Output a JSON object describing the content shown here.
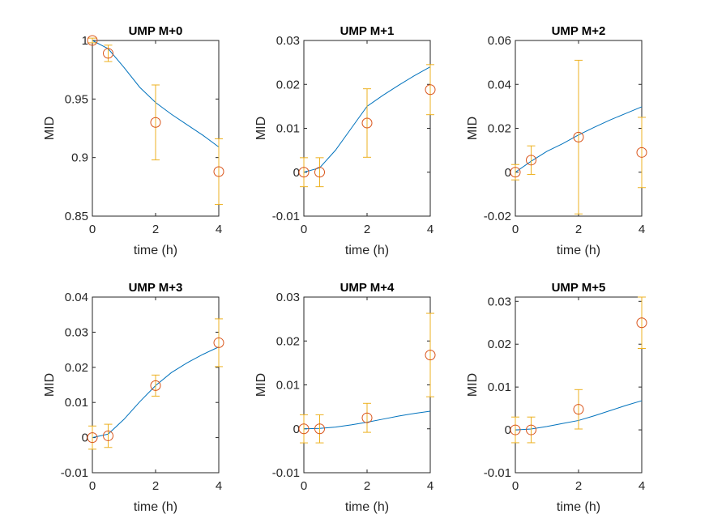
{
  "colors": {
    "model": "#0072BD",
    "data": "#D95319",
    "errorbar": "#EDB120",
    "axis": "#262626",
    "background": "#FFFFFF"
  },
  "chart_data": [
    {
      "type": "line",
      "title": "UMP M+0",
      "xlabel": "time (h)",
      "ylabel": "MID",
      "xlim": [
        0,
        4
      ],
      "ylim": [
        0.85,
        1.0
      ],
      "xticks": [
        0,
        2,
        4
      ],
      "xtick_labels": [
        "0",
        "2",
        "4"
      ],
      "yticks": [
        0.85,
        0.9,
        0.95,
        1.0
      ],
      "ytick_labels": [
        "0.85",
        "0.9",
        "0.95",
        "1"
      ],
      "grid": false,
      "series": [
        {
          "type": "line",
          "x": [
            0,
            0.5,
            1,
            1.5,
            2,
            2.5,
            3,
            3.5,
            4
          ],
          "y": [
            1.0,
            0.993,
            0.977,
            0.96,
            0.947,
            0.937,
            0.928,
            0.919,
            0.909
          ]
        },
        {
          "type": "scatter-errorbar",
          "x": [
            0,
            0.5,
            2,
            4
          ],
          "y": [
            1.0,
            0.989,
            0.93,
            0.888
          ],
          "error": [
            0.002,
            0.007,
            0.032,
            0.028
          ]
        }
      ]
    },
    {
      "type": "line",
      "title": "UMP M+1",
      "xlabel": "time (h)",
      "ylabel": "MID",
      "xlim": [
        0,
        4
      ],
      "ylim": [
        -0.01,
        0.03
      ],
      "xticks": [
        0,
        2,
        4
      ],
      "xtick_labels": [
        "0",
        "2",
        "4"
      ],
      "yticks": [
        -0.01,
        0,
        0.01,
        0.02,
        0.03
      ],
      "ytick_labels": [
        "-0.01",
        "0",
        "0.01",
        "0.02",
        "0.03"
      ],
      "grid": false,
      "series": [
        {
          "type": "line",
          "x": [
            0,
            0.5,
            1,
            1.5,
            2,
            2.5,
            3,
            3.5,
            4
          ],
          "y": [
            0,
            0.001,
            0.005,
            0.01,
            0.015,
            0.0175,
            0.0198,
            0.022,
            0.024
          ]
        },
        {
          "type": "scatter-errorbar",
          "x": [
            0,
            0.5,
            2,
            4
          ],
          "y": [
            0,
            0,
            0.0112,
            0.0188
          ],
          "error": [
            0.0033,
            0.0033,
            0.0078,
            0.0057
          ]
        }
      ]
    },
    {
      "type": "line",
      "title": "UMP M+2",
      "xlabel": "time (h)",
      "ylabel": "MID",
      "xlim": [
        0,
        4
      ],
      "ylim": [
        -0.02,
        0.06
      ],
      "xticks": [
        0,
        2,
        4
      ],
      "xtick_labels": [
        "0",
        "2",
        "4"
      ],
      "yticks": [
        -0.02,
        0,
        0.02,
        0.04,
        0.06
      ],
      "ytick_labels": [
        "-0.02",
        "0",
        "0.02",
        "0.04",
        "0.06"
      ],
      "grid": false,
      "series": [
        {
          "type": "line",
          "x": [
            0,
            0.5,
            1,
            1.5,
            2,
            2.5,
            3,
            3.5,
            4
          ],
          "y": [
            0,
            0.005,
            0.0095,
            0.013,
            0.017,
            0.0205,
            0.0238,
            0.0268,
            0.0298
          ]
        },
        {
          "type": "scatter-errorbar",
          "x": [
            0,
            0.5,
            2,
            4
          ],
          "y": [
            0,
            0.0055,
            0.016,
            0.009
          ],
          "error": [
            0.0035,
            0.0065,
            0.035,
            0.016
          ]
        }
      ]
    },
    {
      "type": "line",
      "title": "UMP M+3",
      "xlabel": "time (h)",
      "ylabel": "MID",
      "xlim": [
        0,
        4
      ],
      "ylim": [
        -0.01,
        0.04
      ],
      "xticks": [
        0,
        2,
        4
      ],
      "xtick_labels": [
        "0",
        "2",
        "4"
      ],
      "yticks": [
        -0.01,
        0,
        0.01,
        0.02,
        0.03,
        0.04
      ],
      "ytick_labels": [
        "-0.01",
        "0",
        "0.01",
        "0.02",
        "0.03",
        "0.04"
      ],
      "grid": false,
      "series": [
        {
          "type": "line",
          "x": [
            0,
            0.5,
            1,
            1.5,
            2,
            2.5,
            3,
            3.5,
            4
          ],
          "y": [
            0,
            0.001,
            0.0052,
            0.0102,
            0.0148,
            0.0185,
            0.0213,
            0.0237,
            0.0258
          ]
        },
        {
          "type": "scatter-errorbar",
          "x": [
            0,
            0.5,
            2,
            4
          ],
          "y": [
            0,
            0.0005,
            0.0148,
            0.027
          ],
          "error": [
            0.0033,
            0.0033,
            0.003,
            0.0068
          ]
        }
      ]
    },
    {
      "type": "line",
      "title": "UMP M+4",
      "xlabel": "time (h)",
      "ylabel": "MID",
      "xlim": [
        0,
        4
      ],
      "ylim": [
        -0.01,
        0.03
      ],
      "xticks": [
        0,
        2,
        4
      ],
      "xtick_labels": [
        "0",
        "2",
        "4"
      ],
      "yticks": [
        -0.01,
        0,
        0.01,
        0.02,
        0.03
      ],
      "ytick_labels": [
        "-0.01",
        "0",
        "0.01",
        "0.02",
        "0.03"
      ],
      "grid": false,
      "series": [
        {
          "type": "line",
          "x": [
            0,
            0.5,
            1,
            1.5,
            2,
            2.5,
            3,
            3.5,
            4
          ],
          "y": [
            0,
            0.0001,
            0.0004,
            0.0009,
            0.0015,
            0.0022,
            0.0029,
            0.0035,
            0.004
          ]
        },
        {
          "type": "scatter-errorbar",
          "x": [
            0,
            0.5,
            2,
            4
          ],
          "y": [
            0,
            0,
            0.0025,
            0.0168
          ],
          "error": [
            0.0032,
            0.0032,
            0.0033,
            0.0095
          ]
        }
      ]
    },
    {
      "type": "line",
      "title": "UMP M+5",
      "xlabel": "time (h)",
      "ylabel": "MID",
      "xlim": [
        0,
        4
      ],
      "ylim": [
        -0.01,
        0.031
      ],
      "xticks": [
        0,
        2,
        4
      ],
      "xtick_labels": [
        "0",
        "2",
        "4"
      ],
      "yticks": [
        -0.01,
        0,
        0.01,
        0.02,
        0.03
      ],
      "ytick_labels": [
        "-0.01",
        "0",
        "0.01",
        "0.02",
        "0.03"
      ],
      "grid": false,
      "series": [
        {
          "type": "line",
          "x": [
            0,
            0.5,
            1,
            1.5,
            2,
            2.5,
            3,
            3.5,
            4
          ],
          "y": [
            0,
            0.0002,
            0.0008,
            0.0015,
            0.0022,
            0.0033,
            0.0045,
            0.0057,
            0.0068
          ]
        },
        {
          "type": "scatter-errorbar",
          "x": [
            0,
            0.5,
            2,
            4
          ],
          "y": [
            0,
            0,
            0.0048,
            0.025
          ],
          "error": [
            0.003,
            0.003,
            0.0046,
            0.006
          ]
        }
      ]
    }
  ]
}
